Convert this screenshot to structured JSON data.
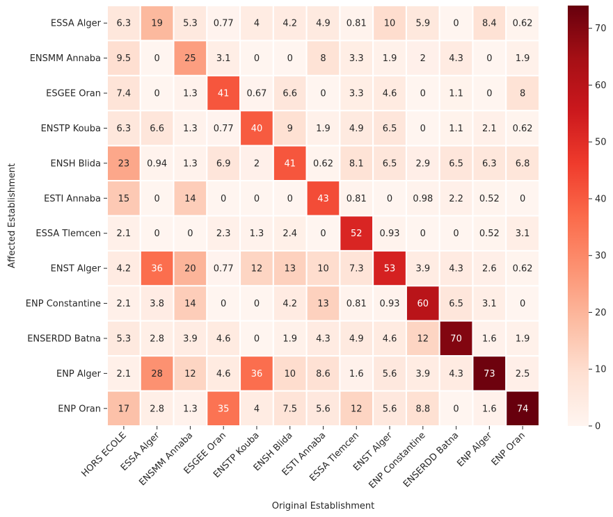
{
  "chart_data": {
    "type": "heatmap",
    "title": "",
    "xlabel": "Original Establishment",
    "ylabel": "Affected Establishment",
    "x_categories": [
      "HORS ECOLE",
      "ESSA Alger",
      "ENSMM Annaba",
      "ESGEE Oran",
      "ENSTP Kouba",
      "ENSH Blida",
      "ESTI Annaba",
      "ESSA Tlemcen",
      "ENST Alger",
      "ENP Constantine",
      "ENSERDD Batna",
      "ENP Alger",
      "ENP Oran"
    ],
    "y_categories": [
      "ESSA Alger",
      "ENSMM Annaba",
      "ESGEE Oran",
      "ENSTP Kouba",
      "ENSH Blida",
      "ESTI Annaba",
      "ESSA Tlemcen",
      "ENST Alger",
      "ENP Constantine",
      "ENSERDD Batna",
      "ENP Alger",
      "ENP Oran"
    ],
    "values": [
      [
        6.3,
        19,
        5.3,
        0.77,
        4,
        4.2,
        4.9,
        0.81,
        10,
        5.9,
        0,
        8.4,
        0.62
      ],
      [
        9.5,
        0,
        25,
        3.1,
        0,
        0,
        8,
        3.3,
        1.9,
        2,
        4.3,
        0,
        1.9
      ],
      [
        7.4,
        0,
        1.3,
        41,
        0.67,
        6.6,
        0,
        3.3,
        4.6,
        0,
        1.1,
        0,
        8
      ],
      [
        6.3,
        6.6,
        1.3,
        0.77,
        40,
        9,
        1.9,
        4.9,
        6.5,
        0,
        1.1,
        2.1,
        0.62
      ],
      [
        23,
        0.94,
        1.3,
        6.9,
        2,
        41,
        0.62,
        8.1,
        6.5,
        2.9,
        6.5,
        6.3,
        6.8
      ],
      [
        15,
        0,
        14,
        0,
        0,
        0,
        43,
        0.81,
        0,
        0.98,
        2.2,
        0.52,
        0
      ],
      [
        2.1,
        0,
        0,
        2.3,
        1.3,
        2.4,
        0,
        52,
        0.93,
        0,
        0,
        0.52,
        3.1
      ],
      [
        4.2,
        36,
        20,
        0.77,
        12,
        13,
        10,
        7.3,
        53,
        3.9,
        4.3,
        2.6,
        0.62
      ],
      [
        2.1,
        3.8,
        14,
        0,
        0,
        4.2,
        13,
        0.81,
        0.93,
        60,
        6.5,
        3.1,
        0
      ],
      [
        5.3,
        2.8,
        3.9,
        4.6,
        0,
        1.9,
        4.3,
        4.9,
        4.6,
        12,
        70,
        1.6,
        1.9
      ],
      [
        2.1,
        28,
        12,
        4.6,
        36,
        10,
        8.6,
        1.6,
        5.6,
        3.9,
        4.3,
        73,
        2.5
      ],
      [
        17,
        2.8,
        1.3,
        35,
        4,
        7.5,
        5.6,
        12,
        5.6,
        8.8,
        0,
        1.6,
        74
      ]
    ],
    "colormap": "Reds",
    "value_range": [
      0,
      74
    ],
    "colorbar_ticks": [
      0,
      10,
      20,
      30,
      40,
      50,
      60,
      70
    ],
    "colors": {
      "low": "#fff5f0",
      "high": "#67000d",
      "text_dark": "#262626",
      "text_light": "#ffffff",
      "cell_border": "#ffffff"
    }
  }
}
